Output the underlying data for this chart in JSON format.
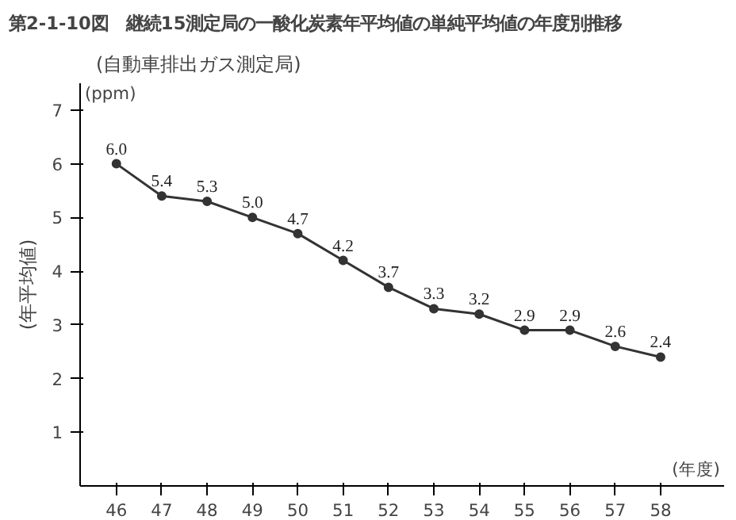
{
  "chart_data": {
    "type": "line",
    "title": "第2-1-10図　継続15測定局の一酸化炭素年平均値の単純平均値の年度別推移",
    "subtitle": "(自動車排出ガス測定局)",
    "ylabel": "(年平均値)",
    "xlabel": "(年度)",
    "annotations": [
      "(ppm)"
    ],
    "categories": [
      "46",
      "47",
      "48",
      "49",
      "50",
      "51",
      "52",
      "53",
      "54",
      "55",
      "56",
      "57",
      "58"
    ],
    "series": [
      {
        "color": "#333333",
        "values": [
          6.0,
          5.4,
          5.3,
          5.0,
          4.7,
          4.2,
          3.7,
          3.3,
          3.2,
          2.9,
          2.9,
          2.6,
          2.4
        ],
        "value_labels": [
          "6.0",
          "5.4",
          "5.3",
          "5.0",
          "4.7",
          "4.2",
          "3.7",
          "3.3",
          "3.2",
          "2.9",
          "2.9",
          "2.6",
          "2.4"
        ]
      }
    ],
    "ylim": [
      0,
      7.5
    ],
    "yticks": [
      1,
      2,
      3,
      4,
      5,
      6,
      7
    ],
    "grid": false,
    "marker": "circle"
  }
}
